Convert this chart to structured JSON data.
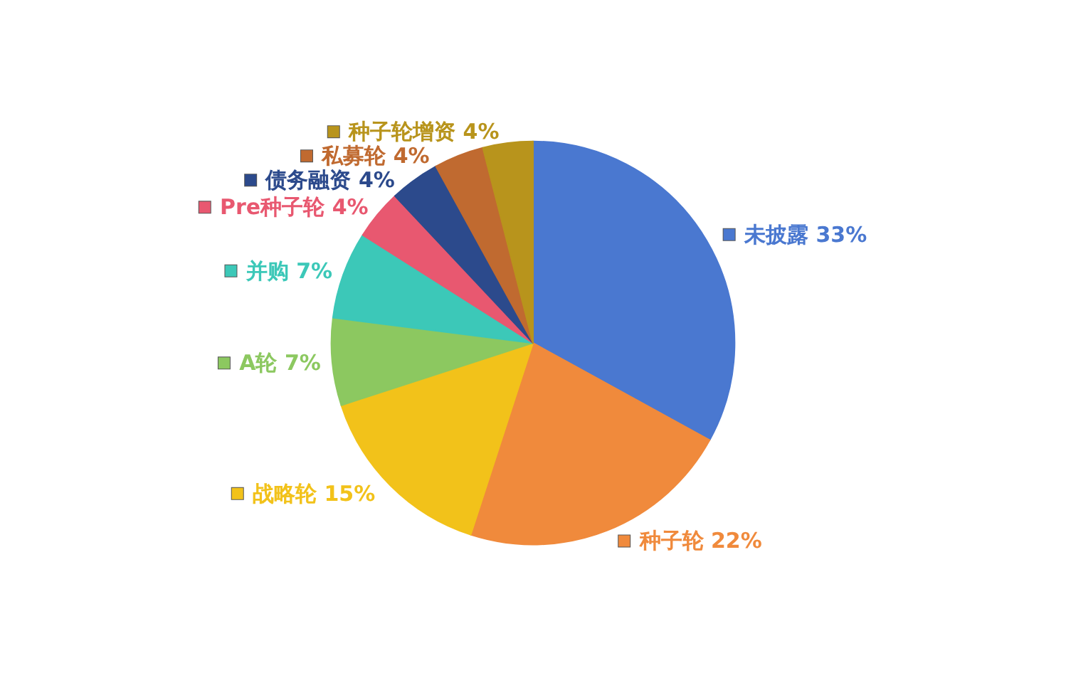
{
  "chart_data": {
    "type": "pie",
    "categories": [
      "未披露",
      "种子轮",
      "战略轮",
      "A轮",
      "并购",
      "Pre种子轮",
      "债务融资",
      "私募轮",
      "种子轮增资"
    ],
    "values": [
      33,
      22,
      15,
      7,
      7,
      4,
      4,
      4,
      4
    ],
    "value_labels": [
      "33%",
      "22%",
      "15%",
      "7%",
      "7%",
      "4%",
      "4%",
      "4%",
      "4%"
    ],
    "colors": [
      "#4a78d0",
      "#f08a3c",
      "#f2c21a",
      "#8cc860",
      "#3cc8b8",
      "#e85870",
      "#2c4a8c",
      "#c06a30",
      "#b8941c"
    ],
    "legend": "left"
  }
}
